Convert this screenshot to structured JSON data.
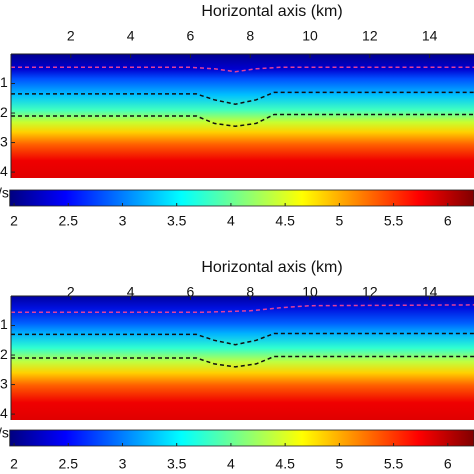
{
  "chart_data": [
    {
      "type": "line",
      "x_label": "Horizontal axis (km)",
      "xlim": [
        0,
        15.5
      ],
      "xticks": [
        2,
        4,
        6,
        8,
        10,
        12,
        14
      ],
      "ylim": [
        0,
        4.2
      ],
      "yticks": [
        1,
        2,
        3,
        4
      ],
      "y_inverted": true,
      "series": [
        {
          "color": "#e0409a",
          "x": [
            0,
            6,
            6.8,
            7.5,
            8.2,
            9,
            15.5
          ],
          "values": [
            0.45,
            0.45,
            0.5,
            0.6,
            0.5,
            0.45,
            0.45
          ]
        },
        {
          "color": "#111111",
          "x": [
            0,
            6.2,
            6.8,
            7.5,
            8.2,
            8.8,
            15.5
          ],
          "values": [
            1.35,
            1.35,
            1.55,
            1.7,
            1.55,
            1.3,
            1.3
          ]
        },
        {
          "color": "#111111",
          "x": [
            0,
            6.2,
            6.8,
            7.5,
            8.2,
            8.8,
            15.5
          ],
          "values": [
            2.1,
            2.1,
            2.35,
            2.45,
            2.35,
            2.05,
            2.05
          ]
        }
      ],
      "colorbar": {
        "label": "/s",
        "lim": [
          1.96,
          6.26
        ],
        "ticks": [
          2,
          2.5,
          3,
          3.5,
          4,
          4.5,
          5,
          5.5,
          6
        ]
      }
    },
    {
      "type": "line",
      "x_label": "Horizontal axis (km)",
      "xlim": [
        0,
        15.5
      ],
      "xticks": [
        2,
        4,
        6,
        8,
        10,
        12,
        14
      ],
      "ylim": [
        0,
        4.2
      ],
      "yticks": [
        1,
        2,
        3,
        4
      ],
      "y_inverted": true,
      "series": [
        {
          "color": "#e0409a",
          "x": [
            0,
            6.5,
            8,
            9,
            10,
            15.5
          ],
          "values": [
            0.55,
            0.55,
            0.5,
            0.4,
            0.33,
            0.3
          ]
        },
        {
          "color": "#111111",
          "x": [
            0,
            6.2,
            6.8,
            7.5,
            8.2,
            8.8,
            15.5
          ],
          "values": [
            1.3,
            1.3,
            1.5,
            1.65,
            1.5,
            1.27,
            1.27
          ]
        },
        {
          "color": "#111111",
          "x": [
            0,
            6.2,
            6.8,
            7.5,
            8.2,
            8.8,
            15.5
          ],
          "values": [
            2.1,
            2.1,
            2.3,
            2.4,
            2.3,
            2.05,
            2.05
          ]
        }
      ],
      "colorbar": {
        "label": "/s",
        "lim": [
          1.96,
          6.26
        ],
        "ticks": [
          2,
          2.5,
          3,
          3.5,
          4,
          4.5,
          5,
          5.5,
          6
        ]
      }
    }
  ]
}
